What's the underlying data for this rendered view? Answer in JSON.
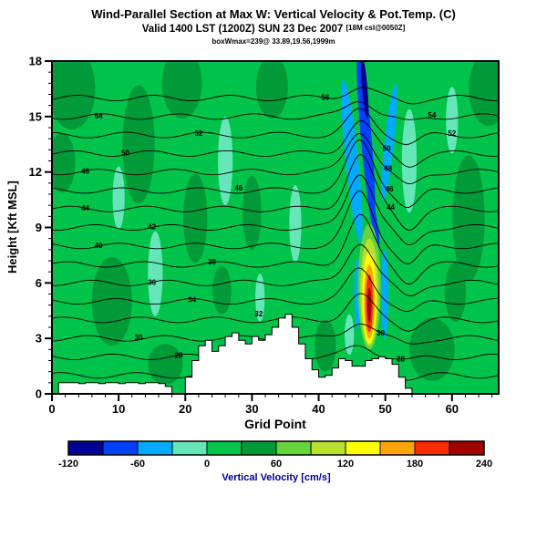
{
  "chart_data": {
    "type": "heatmap",
    "title": "Wind-Parallel Section at Max W: Vertical Velocity & Pot.Temp. (C)",
    "subtitle": "Valid 1400 LST (1200Z) SUN 23 Dec 2007",
    "subtitle_small": "[18M csl@0050Z]",
    "annotation": "boxWmax=239@ 33.89,19.56,1999m",
    "xlabel": "Grid Point",
    "ylabel": "Height [Kft MSL]",
    "xlim": [
      0,
      67
    ],
    "ylim": [
      0,
      18
    ],
    "xticks": [
      0,
      10,
      20,
      30,
      40,
      50,
      60
    ],
    "yticks": [
      0,
      3,
      6,
      9,
      12,
      15,
      18
    ],
    "x_minor_step": 2,
    "y_minor_step": 0.6,
    "colorbar": {
      "label": "Vertical Velocity [cm/s]",
      "ticks": [
        -120,
        -60,
        0,
        60,
        120,
        180,
        240
      ],
      "min": -120,
      "max": 240,
      "step": 30,
      "colors": [
        "#000090",
        "#0040ff",
        "#00aaff",
        "#66e6b8",
        "#00c44a",
        "#009a38",
        "#66d43c",
        "#b8e030",
        "#ffff00",
        "#ffa400",
        "#ff2a00",
        "#a00000"
      ]
    },
    "field": {
      "background_value": 15,
      "regions": [
        {
          "cx": 3,
          "cy": 16.5,
          "rx": 3.5,
          "ry": 2.2,
          "v": 45
        },
        {
          "cx": 1.5,
          "cy": 12.5,
          "rx": 2,
          "ry": 1.6,
          "v": 45
        },
        {
          "cx": 9,
          "cy": 5,
          "rx": 3,
          "ry": 2.4,
          "v": 45
        },
        {
          "cx": 13,
          "cy": 13.5,
          "rx": 2.4,
          "ry": 3.2,
          "v": 45
        },
        {
          "cx": 19.5,
          "cy": 16.8,
          "rx": 3,
          "ry": 1.9,
          "v": 45
        },
        {
          "cx": 21.5,
          "cy": 9.5,
          "rx": 1.8,
          "ry": 2.4,
          "v": 45
        },
        {
          "cx": 17,
          "cy": 1.6,
          "rx": 2.6,
          "ry": 1.1,
          "v": 45
        },
        {
          "cx": 33,
          "cy": 16.6,
          "rx": 2.4,
          "ry": 1.7,
          "v": 45
        },
        {
          "cx": 30,
          "cy": 9.8,
          "rx": 1.4,
          "ry": 2,
          "v": 45
        },
        {
          "cx": 25.5,
          "cy": 5.6,
          "rx": 1.4,
          "ry": 1.3,
          "v": 45
        },
        {
          "cx": 41,
          "cy": 2.6,
          "rx": 1.6,
          "ry": 1.4,
          "v": 45
        },
        {
          "cx": 57,
          "cy": 2.4,
          "rx": 3.4,
          "ry": 1.7,
          "v": 45
        },
        {
          "cx": 62.5,
          "cy": 9.5,
          "rx": 2.4,
          "ry": 3.4,
          "v": 45
        },
        {
          "cx": 65.5,
          "cy": 16.5,
          "rx": 3,
          "ry": 2,
          "v": 45
        },
        {
          "cx": 60.5,
          "cy": 5.5,
          "rx": 1.6,
          "ry": 1.6,
          "v": 45
        },
        {
          "cx": 15.5,
          "cy": 6.5,
          "rx": 1.1,
          "ry": 2.3,
          "v": -15
        },
        {
          "cx": 26,
          "cy": 12.6,
          "rx": 1.1,
          "ry": 2.4,
          "v": -15
        },
        {
          "cx": 36.5,
          "cy": 9.2,
          "rx": 0.9,
          "ry": 2.1,
          "v": -15
        },
        {
          "cx": 31.2,
          "cy": 5.2,
          "rx": 0.7,
          "ry": 1.3,
          "v": -15
        },
        {
          "cx": 53.6,
          "cy": 12.6,
          "rx": 1.1,
          "ry": 2.8,
          "v": -15
        },
        {
          "cx": 60,
          "cy": 14.8,
          "rx": 0.9,
          "ry": 1.8,
          "v": -15
        },
        {
          "cx": 10,
          "cy": 10.6,
          "rx": 0.9,
          "ry": 1.7,
          "v": -15
        },
        {
          "cx": 44.6,
          "cy": 3.2,
          "rx": 0.7,
          "ry": 1.1,
          "v": -15
        },
        {
          "cx": 45,
          "cy": 12.6,
          "rx": 0.95,
          "ry": 4.4,
          "v": -45,
          "rot": -6
        },
        {
          "cx": 50.6,
          "cy": 13.6,
          "rx": 0.7,
          "ry": 3.2,
          "v": -45,
          "rot": 6
        },
        {
          "cx": 49.9,
          "cy": 5.4,
          "rx": 0.55,
          "ry": 2.4,
          "v": -45
        },
        {
          "cx": 45.8,
          "cy": 5.4,
          "rx": 0.45,
          "ry": 1.9,
          "v": -45
        },
        {
          "cx": 47.1,
          "cy": 14,
          "rx": 0.8,
          "ry": 4.7,
          "v": -75,
          "rot": -5
        },
        {
          "cx": 48.2,
          "cy": 9.6,
          "rx": 0.45,
          "ry": 1.7,
          "v": -75,
          "rot": -10
        },
        {
          "cx": 46.9,
          "cy": 16.6,
          "rx": 0.4,
          "ry": 1.7,
          "v": -110,
          "rot": -5
        },
        {
          "cx": 47.6,
          "cy": 5.8,
          "rx": 1.7,
          "ry": 3.4,
          "v": 75
        },
        {
          "cx": 47.6,
          "cy": 5.5,
          "rx": 1.35,
          "ry": 2.9,
          "v": 105
        },
        {
          "cx": 47.6,
          "cy": 5.2,
          "rx": 1.05,
          "ry": 2.5,
          "v": 135
        },
        {
          "cx": 47.6,
          "cy": 5.0,
          "rx": 0.8,
          "ry": 2.0,
          "v": 165
        },
        {
          "cx": 47.6,
          "cy": 4.9,
          "rx": 0.55,
          "ry": 1.55,
          "v": 195
        },
        {
          "cx": 47.6,
          "cy": 4.8,
          "rx": 0.3,
          "ry": 0.95,
          "v": 225
        }
      ]
    },
    "terrain_heights": [
      0,
      0.6,
      0.6,
      0.6,
      0.55,
      0.6,
      0.6,
      0.55,
      0.6,
      0.6,
      0.55,
      0.6,
      0.6,
      0.55,
      0.6,
      0.6,
      0.55,
      0.4,
      0,
      0,
      0.9,
      1.8,
      2.6,
      2.9,
      2.3,
      2.6,
      3.1,
      3.3,
      2.9,
      2.7,
      3.1,
      2.9,
      3.2,
      3.6,
      4.1,
      4.3,
      3.6,
      2.7,
      1.9,
      1.3,
      0.9,
      1.0,
      1.4,
      1.9,
      1.8,
      1.5,
      1.5,
      1.8,
      1.9,
      2.0,
      1.9,
      1.6,
      0.9,
      0.3,
      0,
      0,
      0,
      0,
      0,
      0,
      0,
      0,
      0,
      0,
      0,
      0,
      0
    ],
    "isentropes": {
      "level_min": 26,
      "level_max": 56,
      "level_step": 2,
      "base_offset": 24,
      "base_scale": 0.5,
      "bump_x": 46.2,
      "bump_x_width": 2.7,
      "bump_center_h": 9,
      "bump_h_width": 5.5,
      "bump_amp": 3.0,
      "dip_x": 53.5,
      "dip_width": 2.2,
      "dip_frac": 0.35,
      "wiggle_amp": 0.15,
      "wiggle_freq": 0.55,
      "labels": [
        {
          "t": "56",
          "x": 41,
          "y": 16.05
        },
        {
          "t": "54",
          "x": 7,
          "y": 15.05
        },
        {
          "t": "52",
          "x": 22,
          "y": 14.1
        },
        {
          "t": "50",
          "x": 11,
          "y": 13.05
        },
        {
          "t": "48",
          "x": 5,
          "y": 12.05
        },
        {
          "t": "46",
          "x": 28,
          "y": 11.15
        },
        {
          "t": "44",
          "x": 5,
          "y": 10.05
        },
        {
          "t": "42",
          "x": 15,
          "y": 9.05
        },
        {
          "t": "40",
          "x": 7,
          "y": 8.05
        },
        {
          "t": "38",
          "x": 24,
          "y": 7.15
        },
        {
          "t": "36",
          "x": 15,
          "y": 6.05
        },
        {
          "t": "34",
          "x": 21,
          "y": 5.1
        },
        {
          "t": "32",
          "x": 31,
          "y": 4.35
        },
        {
          "t": "30",
          "x": 13,
          "y": 3.05
        },
        {
          "t": "28",
          "x": 19,
          "y": 2.1
        },
        {
          "t": "50",
          "x": 50.2,
          "y": 13.3
        },
        {
          "t": "48",
          "x": 50.4,
          "y": 12.2
        },
        {
          "t": "46",
          "x": 50.6,
          "y": 11.1
        },
        {
          "t": "44",
          "x": 50.8,
          "y": 10.1
        },
        {
          "t": "30",
          "x": 49.3,
          "y": 3.3
        },
        {
          "t": "28",
          "x": 52.3,
          "y": 1.9
        },
        {
          "t": "54",
          "x": 57,
          "y": 15.1
        },
        {
          "t": "52",
          "x": 60,
          "y": 14.1
        }
      ]
    }
  }
}
